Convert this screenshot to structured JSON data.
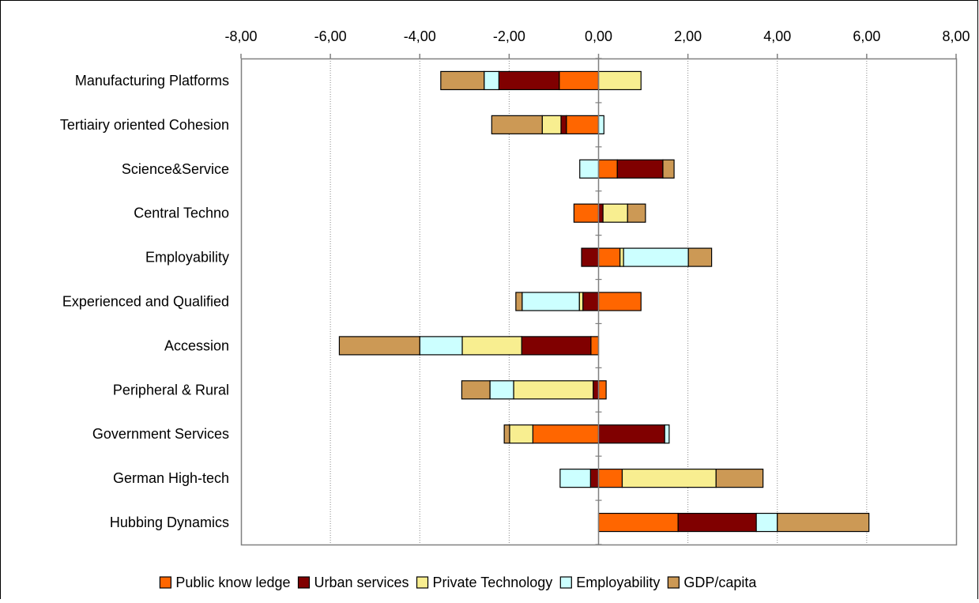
{
  "chart_data": {
    "type": "bar",
    "orientation": "horizontal",
    "stacked": true,
    "categories": [
      "Manufacturing Platforms",
      "Tertiairy oriented Cohesion",
      "Science&Service",
      "Central Techno",
      "Employability",
      "Experienced and Qualified",
      "Accession",
      "Peripheral & Rural",
      "Government Services",
      "German High-tech",
      "Hubbing Dynamics "
    ],
    "series": [
      {
        "name": "Public know ledge",
        "color": "#ff6600",
        "values": [
          -0.88,
          -0.72,
          0.42,
          -0.55,
          0.48,
          0.95,
          -0.17,
          0.17,
          -1.47,
          0.53,
          1.78
        ]
      },
      {
        "name": "Urban services",
        "color": "#800000",
        "values": [
          -1.35,
          -0.12,
          1.02,
          0.1,
          -0.38,
          -0.35,
          -1.55,
          -0.12,
          1.48,
          -0.18,
          1.75
        ]
      },
      {
        "name": "Private Technology",
        "color": "#f8ee90",
        "values": [
          0.95,
          -0.42,
          0.0,
          0.55,
          0.08,
          -0.08,
          -1.33,
          -1.78,
          -0.52,
          2.1,
          0.0
        ]
      },
      {
        "name": "Employability",
        "color": "#ccffff",
        "values": [
          -0.33,
          0.12,
          -0.42,
          0.0,
          1.45,
          -1.28,
          -0.95,
          -0.53,
          0.1,
          -0.68,
          0.47
        ]
      },
      {
        "name": "GDP/capita",
        "color": "#cc9955",
        "values": [
          -0.97,
          -1.13,
          0.25,
          0.4,
          0.52,
          -0.14,
          -1.8,
          -0.63,
          -0.12,
          1.05,
          2.05
        ]
      }
    ],
    "xlim": [
      -8,
      8
    ],
    "xticks": [
      "-8,00",
      "-6,00",
      "-4,00",
      "-2,00",
      "0,00",
      "2,00",
      "4,00",
      "6,00",
      "8,00"
    ],
    "xaxis_position": "top",
    "grid": "vertical dotted",
    "legend": "bottom",
    "title": "",
    "xlabel": "",
    "ylabel": ""
  }
}
